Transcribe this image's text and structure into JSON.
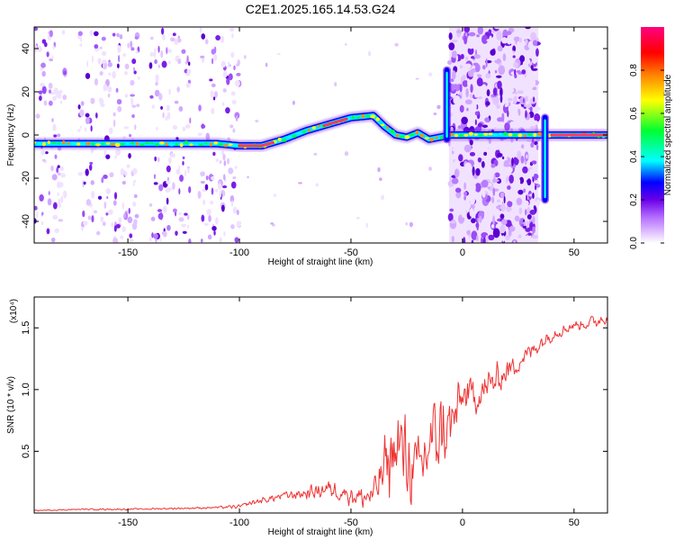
{
  "title": "C2E1.2025.165.14.53.G24",
  "chart_data": [
    {
      "type": "heatmap",
      "xlabel": "Height of straight line (km)",
      "ylabel": "Frequency (Hz)",
      "xlim": [
        -192,
        65
      ],
      "ylim": [
        -50,
        50
      ],
      "xticks": [
        -150,
        -100,
        -50,
        0,
        50
      ],
      "yticks": [
        -40,
        -20,
        0,
        20,
        40
      ],
      "colorbar": {
        "label": "Normalized spectral amplitude",
        "range": [
          0,
          1
        ],
        "ticks": [
          0.0,
          0.2,
          0.4,
          0.6,
          0.8
        ],
        "colors": [
          "#ffffff",
          "#d9a8ff",
          "#8a2be2",
          "#1010ff",
          "#00ffff",
          "#00ff40",
          "#ffff00",
          "#ff8000",
          "#ff0000",
          "#ff00a0"
        ]
      },
      "ridge": {
        "x": [
          -192,
          -160,
          -130,
          -110,
          -100,
          -90,
          -80,
          -70,
          -60,
          -50,
          -40,
          -35,
          -30,
          -25,
          -20,
          -15,
          -10,
          -5,
          0,
          5,
          10,
          20,
          30,
          40,
          65
        ],
        "y": [
          -4,
          -4,
          -4,
          -4,
          -5,
          -5,
          -2,
          2,
          5,
          8,
          9,
          4,
          0,
          -1,
          1,
          -2,
          -1,
          0,
          0,
          0,
          0,
          0,
          0,
          0,
          0
        ]
      },
      "strong_segments": [
        [
          -100,
          -85
        ],
        [
          -62,
          -52
        ],
        [
          40,
          65
        ]
      ],
      "noise_bands": [
        [
          -192,
          -178
        ],
        [
          -172,
          -145
        ],
        [
          -140,
          -122
        ],
        [
          -118,
          -100
        ],
        [
          -6,
          34
        ]
      ],
      "spikes": [
        {
          "x": -7,
          "ymin": -2,
          "ymax": 30
        },
        {
          "x": 37,
          "ymin": -30,
          "ymax": 8
        }
      ]
    },
    {
      "type": "line",
      "xlabel": "Height of straight line (km)",
      "ylabel": "SNR (10 * v/v)",
      "scale_label": "(x10⁴)",
      "xlim": [
        -192,
        65
      ],
      "ylim": [
        0,
        1.75
      ],
      "xticks": [
        -150,
        -100,
        -50,
        0,
        50
      ],
      "yticks": [
        0.5,
        1.0,
        1.5
      ],
      "series": [
        {
          "color": "#ee3333",
          "anchors": {
            "x": [
              -192,
              -170,
              -150,
              -120,
              -100,
              -95,
              -90,
              -80,
              -70,
              -60,
              -50,
              -45,
              -40,
              -35,
              -30,
              -25,
              -20,
              -15,
              -10,
              -5,
              0,
              5,
              10,
              20,
              30,
              40,
              50,
              60,
              65
            ],
            "y": [
              0.02,
              0.03,
              0.03,
              0.04,
              0.05,
              0.08,
              0.1,
              0.14,
              0.16,
              0.2,
              0.15,
              0.12,
              0.15,
              0.35,
              0.55,
              0.45,
              0.3,
              0.55,
              0.65,
              0.7,
              0.95,
              0.95,
              1.0,
              1.15,
              1.3,
              1.45,
              1.52,
              1.55,
              1.6
            ]
          },
          "wiggle": {
            "x": [
              -192,
              -110,
              -100,
              -80,
              -60,
              -40,
              -35,
              -30,
              -20,
              -10,
              0,
              10,
              20,
              35,
              50,
              65
            ],
            "amplitude": [
              0.005,
              0.01,
              0.02,
              0.04,
              0.08,
              0.12,
              0.35,
              0.45,
              0.35,
              0.4,
              0.2,
              0.18,
              0.12,
              0.08,
              0.05,
              0.08
            ]
          }
        }
      ]
    }
  ]
}
